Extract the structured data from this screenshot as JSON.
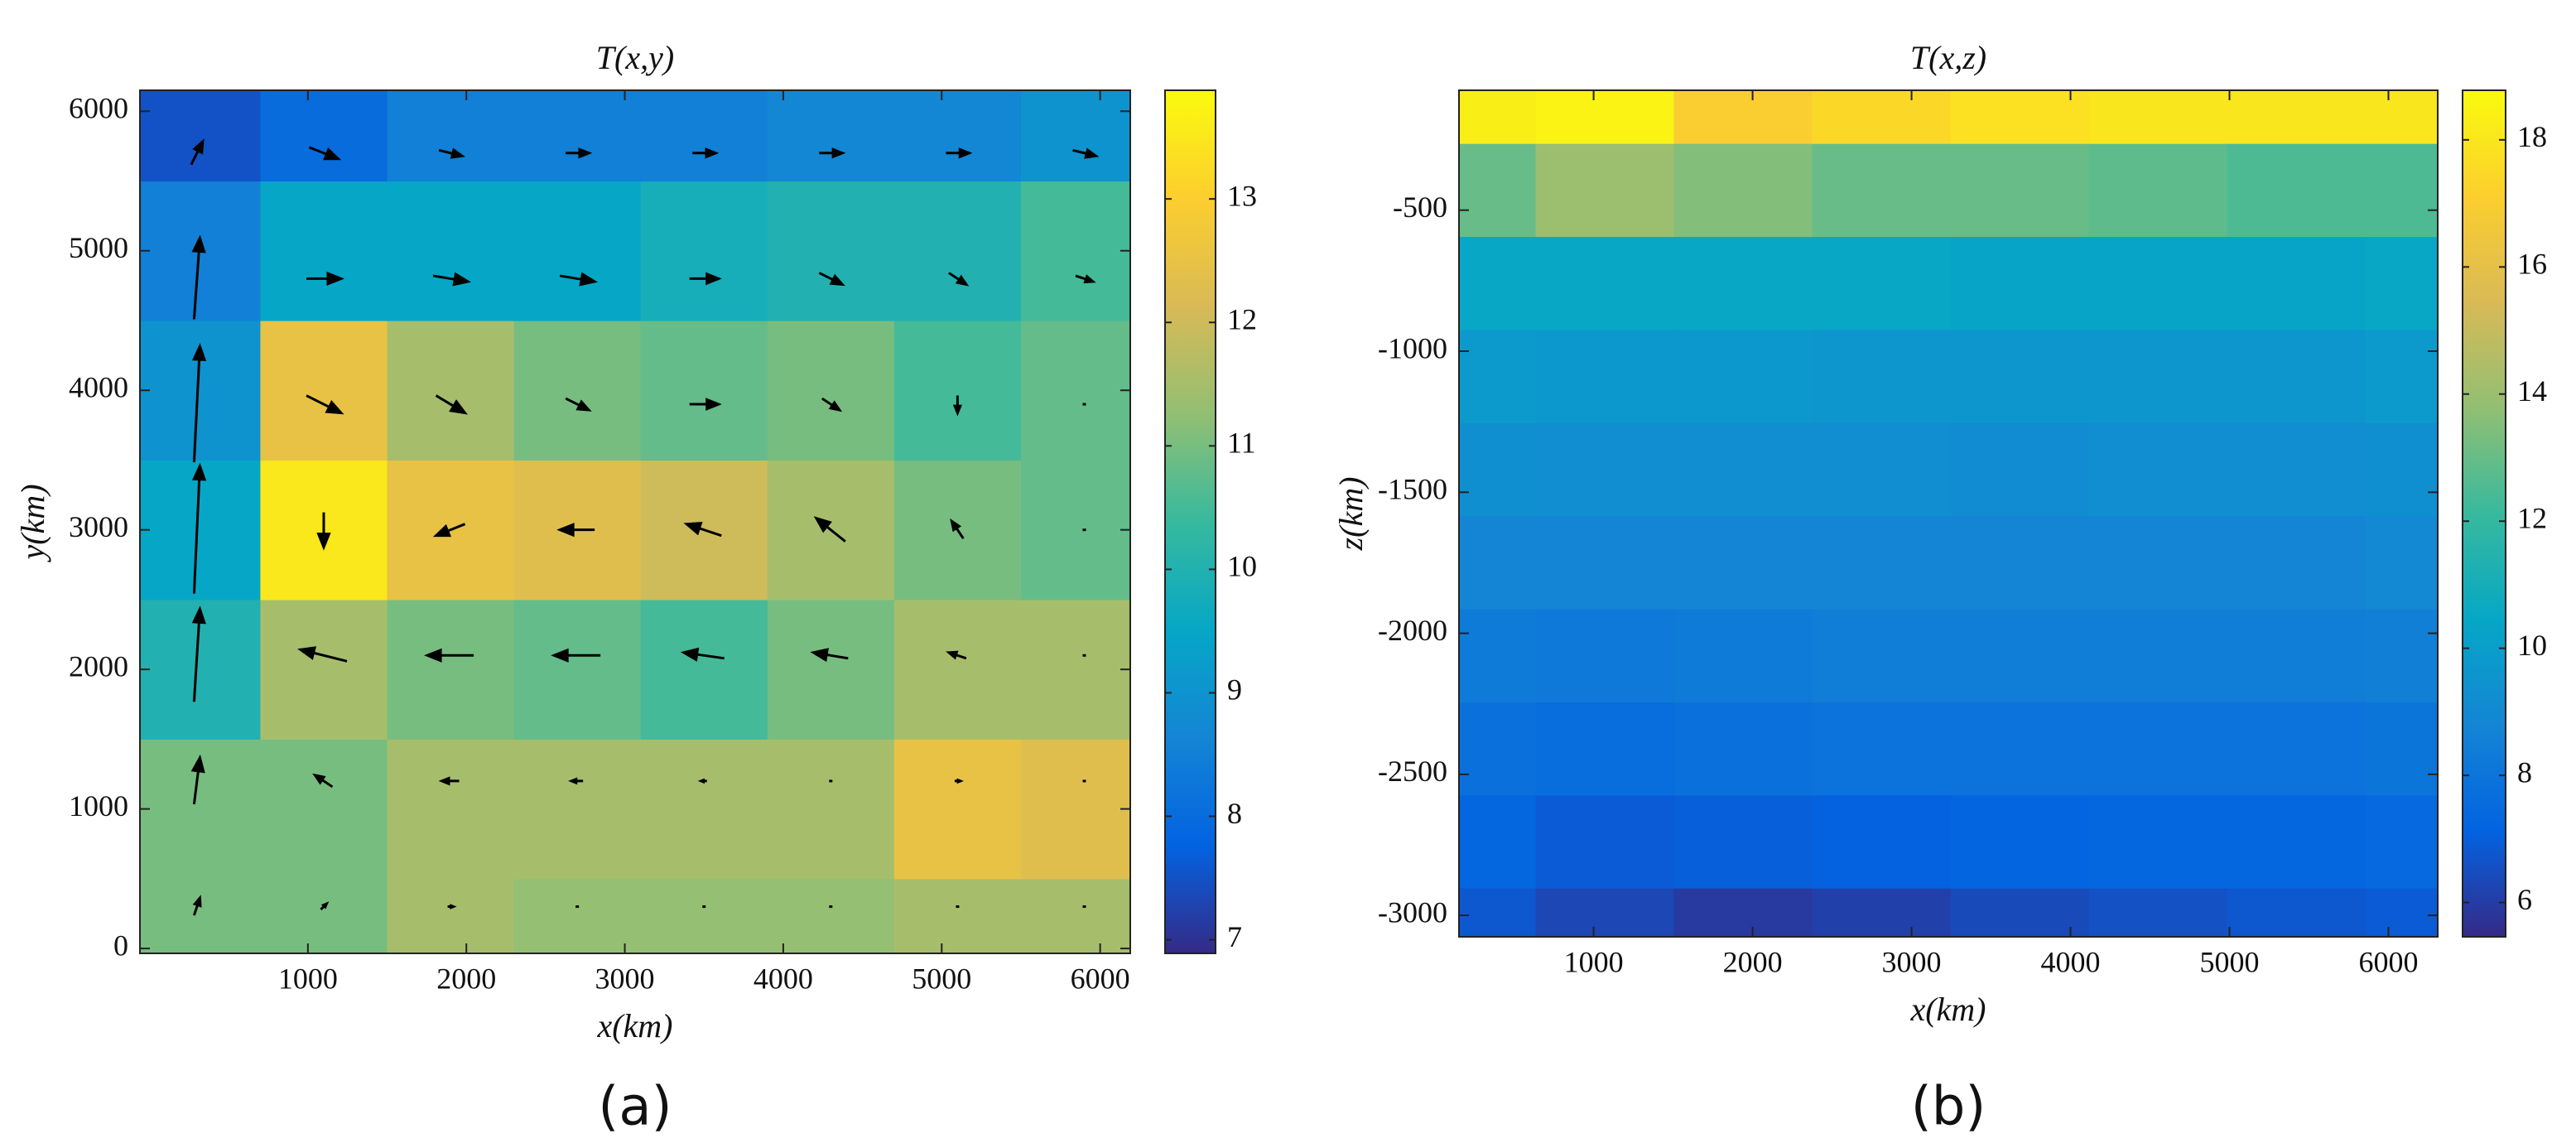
{
  "chart_data": [
    {
      "type": "heatmap",
      "title": "T(x,y)",
      "x_label": "x(km)",
      "y_label": "y(km)",
      "panel_label": "(a)",
      "colormap": [
        "#352a87",
        "#0363e1",
        "#1485d4",
        "#06a7c6",
        "#38b99e",
        "#92bf73",
        "#d9ba56",
        "#fcce2e",
        "#f9fb0e"
      ],
      "x": [
        300,
        1100,
        1900,
        2700,
        3500,
        4300,
        5100,
        5900
      ],
      "y": [
        0,
        1000,
        2000,
        3000,
        4000,
        5000,
        6000
      ],
      "z": [
        [
          11,
          11,
          11.5,
          11.3,
          11.3,
          11.3,
          11.5,
          11.5
        ],
        [
          11,
          11,
          11.5,
          11.5,
          11.5,
          11.5,
          12.5,
          12.3
        ],
        [
          10,
          11.5,
          11,
          10.8,
          10.5,
          11,
          11.5,
          11.5
        ],
        [
          9.5,
          13.5,
          12.5,
          12.3,
          12,
          11.5,
          11,
          10.8
        ],
        [
          9,
          12.5,
          11.5,
          11,
          10.8,
          11,
          10.5,
          10.8
        ],
        [
          8.5,
          9.5,
          9.5,
          9.5,
          9.8,
          10,
          10,
          10.5
        ],
        [
          7.5,
          8,
          8.5,
          8.5,
          8.5,
          8.7,
          8.7,
          9
        ]
      ],
      "xlim": [
        -60,
        6190
      ],
      "ylim": [
        -35,
        6150
      ],
      "xticks": [
        1000,
        2000,
        3000,
        4000,
        5000,
        6000
      ],
      "yticks": [
        0,
        1000,
        2000,
        3000,
        4000,
        5000,
        6000
      ],
      "colorbar": {
        "lim": [
          6.89,
          13.88
        ],
        "ticks": [
          7,
          8,
          9,
          10,
          11,
          12,
          13
        ]
      },
      "vectors": {
        "x": [
          300,
          1100,
          1900,
          2700,
          3500,
          4300,
          5100,
          5900
        ],
        "y": [
          300,
          1200,
          2100,
          3000,
          3900,
          4800,
          5700
        ],
        "u": [
          [
            0.1,
            0.1,
            0.1,
            0,
            0,
            0,
            0,
            0
          ],
          [
            0.1,
            -0.3,
            -0.3,
            -0.2,
            -0.1,
            0,
            0.1,
            0
          ],
          [
            0.1,
            -0.8,
            -0.8,
            -0.8,
            -0.7,
            -0.6,
            -0.3,
            0
          ],
          [
            0.1,
            0,
            -0.5,
            -0.6,
            -0.6,
            -0.5,
            -0.2,
            0
          ],
          [
            0.1,
            0.6,
            0.5,
            0.4,
            0.5,
            0.3,
            0,
            0
          ],
          [
            0.1,
            0.6,
            0.6,
            0.6,
            0.5,
            0.4,
            0.3,
            0.3
          ],
          [
            0.2,
            0.5,
            0.4,
            0.4,
            0.4,
            0.4,
            0.4,
            0.4
          ]
        ],
        "v": [
          [
            0.3,
            0.1,
            0,
            0,
            0,
            0,
            0,
            0
          ],
          [
            0.8,
            0.2,
            0,
            0,
            0,
            0,
            0,
            0
          ],
          [
            1.6,
            0.2,
            0,
            0,
            0.1,
            0.1,
            0.1,
            0
          ],
          [
            2.2,
            -0.6,
            -0.2,
            0,
            0.2,
            0.4,
            0.3,
            0
          ],
          [
            2.0,
            -0.3,
            -0.3,
            -0.2,
            0,
            -0.2,
            -0.3,
            0
          ],
          [
            1.4,
            0,
            -0.1,
            -0.1,
            0,
            -0.2,
            -0.2,
            -0.1
          ],
          [
            0.4,
            -0.2,
            -0.1,
            0,
            0,
            0,
            0,
            -0.1
          ]
        ]
      }
    },
    {
      "type": "heatmap",
      "title": "T(x,z)",
      "x_label": "x(km)",
      "y_label": "z(km)",
      "panel_label": "(b)",
      "colormap": [
        "#352a87",
        "#0363e1",
        "#1485d4",
        "#06a7c6",
        "#38b99e",
        "#92bf73",
        "#d9ba56",
        "#fcce2e",
        "#f9fb0e"
      ],
      "x": [
        200,
        1070,
        1940,
        2810,
        3680,
        4550,
        5420,
        6290
      ],
      "y": [
        -100,
        -430,
        -760,
        -1090,
        -1420,
        -1750,
        -2080,
        -2410,
        -2740,
        -3070
      ],
      "z": [
        [
          18.3,
          18.5,
          17,
          17.5,
          17.8,
          18,
          18,
          18
        ],
        [
          13,
          14,
          13.5,
          13,
          13,
          12.8,
          12.5,
          12.5
        ],
        [
          10.5,
          10.5,
          10.5,
          10.5,
          10.3,
          10.3,
          10.3,
          10.5
        ],
        [
          9.8,
          9.7,
          9.7,
          9.6,
          9.6,
          9.6,
          9.6,
          9.8
        ],
        [
          9.3,
          9.2,
          9.2,
          9.2,
          9.1,
          9.2,
          9.2,
          9.3
        ],
        [
          8.8,
          8.8,
          8.8,
          8.8,
          8.8,
          8.8,
          8.8,
          9
        ],
        [
          8.3,
          8.2,
          8.3,
          8.4,
          8.4,
          8.4,
          8.4,
          8.5
        ],
        [
          7.8,
          7.6,
          7.8,
          7.9,
          7.9,
          7.9,
          7.9,
          8
        ],
        [
          7.3,
          6.9,
          7,
          7.1,
          7.2,
          7.3,
          7.3,
          7.4
        ],
        [
          6.8,
          6.3,
          5.9,
          6.1,
          6.4,
          6.6,
          6.8,
          6.9
        ]
      ],
      "xlim": [
        153,
        6310
      ],
      "ylim": [
        -3076,
        -75
      ],
      "xticks": [
        1000,
        2000,
        3000,
        4000,
        5000,
        6000
      ],
      "yticks": [
        -500,
        -1000,
        -1500,
        -2000,
        -2500,
        -3000
      ],
      "colorbar": {
        "lim": [
          5.46,
          18.78
        ],
        "ticks": [
          6,
          8,
          10,
          12,
          14,
          16,
          18
        ]
      }
    }
  ]
}
